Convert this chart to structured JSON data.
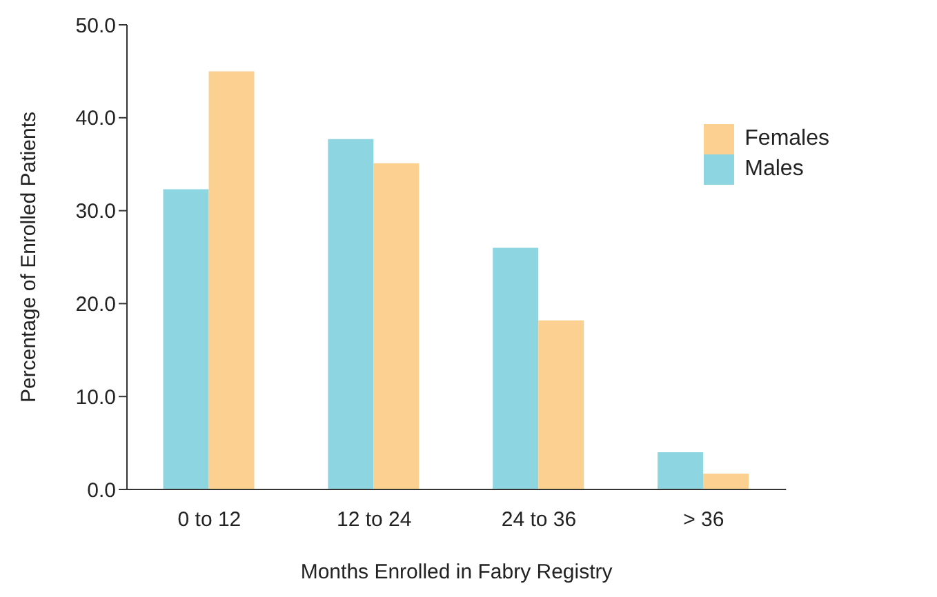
{
  "chart_data": {
    "type": "bar",
    "xlabel": "Months Enrolled in Fabry Registry",
    "ylabel": "Percentage of Enrolled Patients",
    "categories": [
      "0 to 12",
      "12 to 24",
      "24 to 36",
      "> 36"
    ],
    "series": [
      {
        "name": "Males",
        "color": "#8dd5e0",
        "values": [
          32.3,
          37.7,
          26.0,
          4.0
        ]
      },
      {
        "name": "Females",
        "color": "#fcd091",
        "values": [
          45.0,
          35.1,
          18.2,
          1.7
        ]
      }
    ],
    "ylim": [
      0,
      50
    ],
    "yticks": [
      {
        "value": 0,
        "label": "0.0"
      },
      {
        "value": 10,
        "label": "10.0"
      },
      {
        "value": 20,
        "label": "20.0"
      },
      {
        "value": 30,
        "label": "30.0"
      },
      {
        "value": 40,
        "label": "40.0"
      },
      {
        "value": 50,
        "label": "50.0"
      }
    ],
    "grid": false,
    "legend": "top right"
  }
}
